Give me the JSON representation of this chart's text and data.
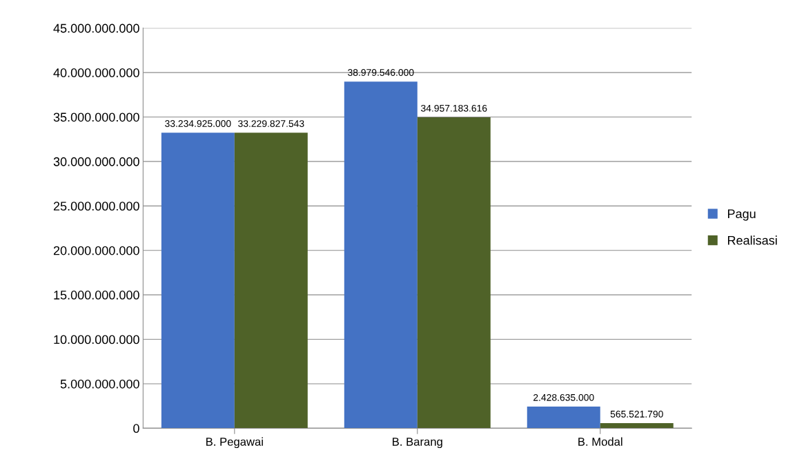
{
  "chart_data": {
    "type": "bar",
    "categories": [
      "B. Pegawai",
      "B. Barang",
      "B. Modal"
    ],
    "series": [
      {
        "name": "Pagu",
        "color": "#4472c4",
        "values": [
          33234925000,
          38979546000,
          2428635000
        ],
        "value_labels": [
          "33.234.925.000",
          "38.979.546.000",
          "2.428.635.000"
        ]
      },
      {
        "name": "Realisasi",
        "color": "#4f6228",
        "values": [
          33229827543,
          34957183616,
          565521790
        ],
        "value_labels": [
          "33.229.827.543",
          "34.957.183.616",
          "565.521.790"
        ]
      }
    ],
    "ylim": [
      0,
      45000000000
    ],
    "yticks": [
      {
        "value": 0,
        "label": "0"
      },
      {
        "value": 5000000000,
        "label": "5.000.000.000"
      },
      {
        "value": 10000000000,
        "label": "10.000.000.000"
      },
      {
        "value": 15000000000,
        "label": "15.000.000.000"
      },
      {
        "value": 20000000000,
        "label": "20.000.000.000"
      },
      {
        "value": 25000000000,
        "label": "25.000.000.000"
      },
      {
        "value": 30000000000,
        "label": "30.000.000.000"
      },
      {
        "value": 35000000000,
        "label": "35.000.000.000"
      },
      {
        "value": 40000000000,
        "label": "40.000.000.000"
      },
      {
        "value": 45000000000,
        "label": "45.000.000.000"
      }
    ],
    "grid": "y",
    "legend": "right"
  }
}
